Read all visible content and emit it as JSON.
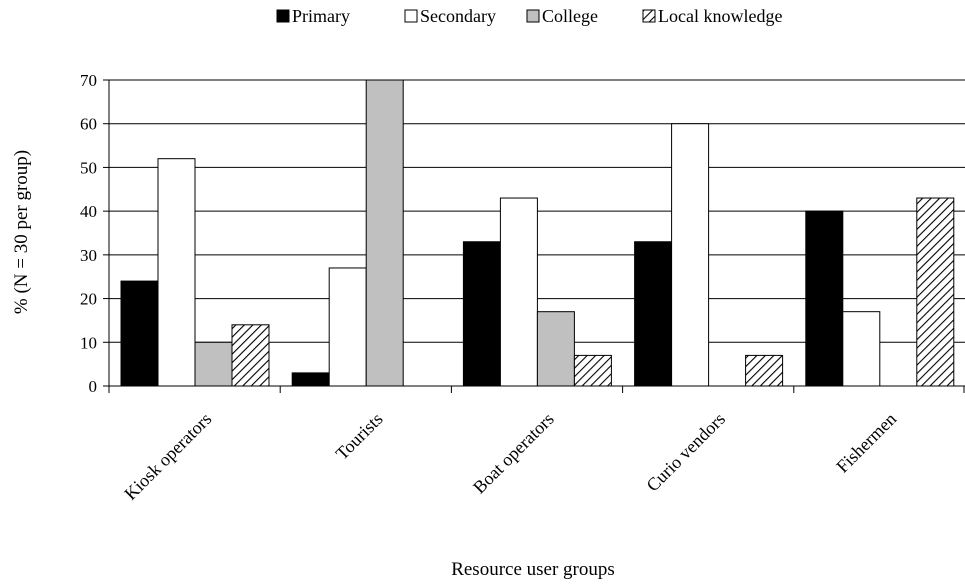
{
  "chart_data": {
    "type": "bar",
    "title": "",
    "xlabel": "Resource user groups",
    "ylabel": "% (N = 30 per group)",
    "ylim": [
      0,
      70
    ],
    "yticks": [
      0,
      10,
      20,
      30,
      40,
      50,
      60,
      70
    ],
    "grid": true,
    "legend_position": "top",
    "categories": [
      "Kiosk operators",
      "Tourists",
      "Boat operators",
      "Curio vendors",
      "Fishermen"
    ],
    "series": [
      {
        "name": "Primary",
        "values": [
          24,
          3,
          33,
          33,
          40
        ],
        "color": "#000000",
        "pattern": "solid"
      },
      {
        "name": "Secondary",
        "values": [
          52,
          27,
          43,
          60,
          17
        ],
        "color": "#ffffff",
        "pattern": "solid"
      },
      {
        "name": "College",
        "values": [
          10,
          70,
          17,
          0,
          0
        ],
        "color": "#c0c0c0",
        "pattern": "solid"
      },
      {
        "name": "Local knowledge",
        "values": [
          14,
          0,
          7,
          7,
          43
        ],
        "color": "#ffffff",
        "pattern": "diagonal-hatch"
      }
    ]
  }
}
